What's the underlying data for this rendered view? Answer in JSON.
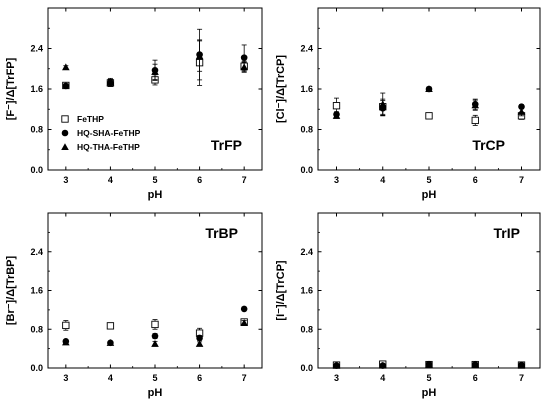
{
  "chart_data": [
    {
      "type": "scatter",
      "panel_title": "TrFP",
      "xlabel": "pH",
      "ylabel": "[F⁻]/Δ[TrFP]",
      "x_ticks": [
        "3",
        "4",
        "5",
        "6",
        "7"
      ],
      "y_ticks": [
        "0.0",
        "0.8",
        "1.6",
        "2.4"
      ],
      "xlim": [
        2.6,
        7.4
      ],
      "ylim": [
        0,
        3.2
      ],
      "legend": {
        "placement": "left-middle",
        "entries": [
          "FeTHP",
          "HQ-SHA-FeTHP",
          "HQ-THA-FeTHP"
        ]
      },
      "series": [
        {
          "name": "FeTHP",
          "marker": "open-square",
          "x": [
            3,
            4,
            5,
            6,
            7
          ],
          "y": [
            1.67,
            1.72,
            1.78,
            2.12,
            2.05
          ],
          "err": [
            0.05,
            0.07,
            0.1,
            0.45,
            0.1
          ]
        },
        {
          "name": "HQ-SHA-FeTHP",
          "marker": "filled-circle",
          "x": [
            3,
            4,
            5,
            6,
            7
          ],
          "y": [
            1.66,
            1.72,
            1.97,
            2.28,
            2.22
          ],
          "err": [
            0.04,
            0.05,
            0.2,
            0.5,
            0.25
          ]
        },
        {
          "name": "HQ-THA-FeTHP",
          "marker": "filled-triangle",
          "x": [
            3,
            4,
            5,
            6,
            7
          ],
          "y": [
            2.03,
            1.73,
            1.94,
            2.25,
            2.03
          ],
          "err": [
            0.03,
            0.08,
            0.15,
            0.3,
            0.1
          ]
        }
      ]
    },
    {
      "type": "scatter",
      "panel_title": "TrCP",
      "xlabel": "pH",
      "ylabel": "[Cl⁻]/Δ[TrCP]",
      "x_ticks": [
        "3",
        "4",
        "5",
        "6",
        "7"
      ],
      "y_ticks": [
        "0.0",
        "0.8",
        "1.6",
        "2.4"
      ],
      "xlim": [
        2.6,
        7.4
      ],
      "ylim": [
        0,
        3.2
      ],
      "series": [
        {
          "name": "FeTHP",
          "marker": "open-square",
          "x": [
            3,
            4,
            5,
            6,
            7
          ],
          "y": [
            1.27,
            1.25,
            1.07,
            0.98,
            1.07
          ],
          "err": [
            0.15,
            0.15,
            0.02,
            0.1,
            0.07
          ]
        },
        {
          "name": "HQ-SHA-FeTHP",
          "marker": "filled-circle",
          "x": [
            3,
            4,
            5,
            6,
            7
          ],
          "y": [
            1.1,
            1.22,
            1.6,
            1.3,
            1.25
          ],
          "err": [
            0.05,
            0.15,
            0.04,
            0.1,
            0.04
          ]
        },
        {
          "name": "HQ-THA-FeTHP",
          "marker": "filled-triangle",
          "x": [
            3,
            4,
            5,
            6,
            7
          ],
          "y": [
            1.07,
            1.3,
            1.6,
            1.28,
            1.15
          ],
          "err": [
            0.05,
            0.22,
            0.04,
            0.1,
            0.08
          ]
        }
      ]
    },
    {
      "type": "scatter",
      "panel_title": "TrBP",
      "xlabel": "pH",
      "ylabel": "[Br⁻]/Δ[TrBP]",
      "x_ticks": [
        "3",
        "4",
        "5",
        "6",
        "7"
      ],
      "y_ticks": [
        "0.0",
        "0.8",
        "1.6",
        "2.4"
      ],
      "xlim": [
        2.6,
        7.4
      ],
      "ylim": [
        0,
        3.2
      ],
      "series": [
        {
          "name": "FeTHP",
          "marker": "open-square",
          "x": [
            3,
            4,
            5,
            6,
            7
          ],
          "y": [
            0.88,
            0.87,
            0.9,
            0.72,
            0.95
          ],
          "err": [
            0.1,
            0.02,
            0.1,
            0.1,
            0.06
          ]
        },
        {
          "name": "HQ-SHA-FeTHP",
          "marker": "filled-circle",
          "x": [
            3,
            4,
            5,
            6,
            7
          ],
          "y": [
            0.55,
            0.52,
            0.66,
            0.62,
            1.22
          ],
          "err": [
            0.03,
            0.02,
            0.05,
            0.05,
            0.02
          ]
        },
        {
          "name": "HQ-THA-FeTHP",
          "marker": "filled-triangle",
          "x": [
            3,
            4,
            5,
            6,
            7
          ],
          "y": [
            0.53,
            0.52,
            0.5,
            0.5,
            0.93
          ],
          "err": [
            0.03,
            0.02,
            0.05,
            0.04,
            0.05
          ]
        }
      ]
    },
    {
      "type": "scatter",
      "panel_title": "TrIP",
      "xlabel": "pH",
      "ylabel": "[I⁻]/Δ[TrCP]",
      "x_ticks": [
        "3",
        "4",
        "5",
        "6",
        "7"
      ],
      "y_ticks": [
        "0.0",
        "0.8",
        "1.6",
        "2.4"
      ],
      "xlim": [
        2.6,
        7.4
      ],
      "ylim": [
        0,
        3.2
      ],
      "series": [
        {
          "name": "FeTHP",
          "marker": "open-square",
          "x": [
            3,
            4,
            5,
            6,
            7
          ],
          "y": [
            0.06,
            0.08,
            0.07,
            0.07,
            0.06
          ],
          "err": [
            0.02,
            0.02,
            0.02,
            0.02,
            0.02
          ]
        },
        {
          "name": "HQ-SHA-FeTHP",
          "marker": "filled-circle",
          "x": [
            3,
            4,
            5,
            6,
            7
          ],
          "y": [
            0.05,
            0.05,
            0.08,
            0.07,
            0.06
          ],
          "err": [
            0.01,
            0.01,
            0.02,
            0.01,
            0.01
          ]
        },
        {
          "name": "HQ-THA-FeTHP",
          "marker": "filled-triangle",
          "x": [
            3,
            4,
            5,
            6,
            7
          ],
          "y": [
            0.05,
            0.05,
            0.07,
            0.07,
            0.06
          ],
          "err": [
            0.01,
            0.01,
            0.02,
            0.01,
            0.01
          ]
        }
      ]
    }
  ]
}
